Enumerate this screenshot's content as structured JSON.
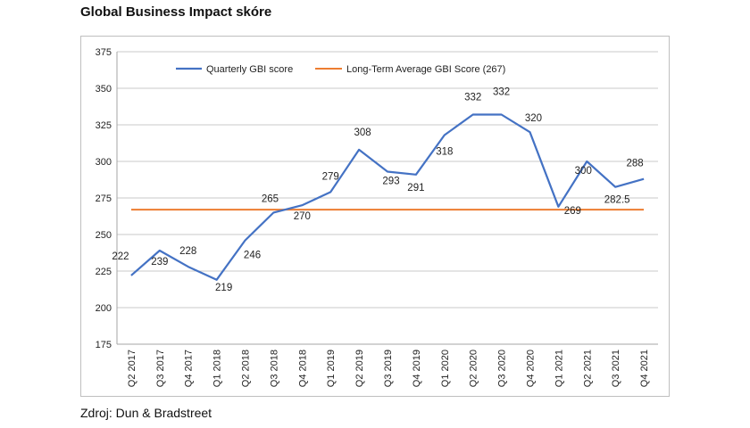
{
  "page": {
    "title": "Global Business Impact skóre",
    "source": "Zdroj: Dun & Bradstreet"
  },
  "chart_data": {
    "type": "line",
    "categories": [
      "Q2 2017",
      "Q3 2017",
      "Q4 2017",
      "Q1 2018",
      "Q2 2018",
      "Q3 2018",
      "Q4 2018",
      "Q1 2019",
      "Q2 2019",
      "Q3 2019",
      "Q4 2019",
      "Q1 2020",
      "Q2 2020",
      "Q3 2020",
      "Q4 2020",
      "Q1 2021",
      "Q2 2021",
      "Q3 2021",
      "Q4 2021"
    ],
    "series": [
      {
        "name": "Quarterly GBI score",
        "color": "#4472c4",
        "values": [
          222,
          239,
          228,
          219,
          246,
          265,
          270,
          279,
          308,
          293,
          291,
          318,
          332,
          332,
          320,
          269,
          300,
          282.5,
          288
        ]
      },
      {
        "name": "Long-Term Average GBI Score (267)",
        "color": "#ed7d31",
        "values": [
          267,
          267,
          267,
          267,
          267,
          267,
          267,
          267,
          267,
          267,
          267,
          267,
          267,
          267,
          267,
          267,
          267,
          267,
          267
        ]
      }
    ],
    "data_labels": [
      "222",
      "239",
      "228",
      "219",
      "246",
      "265",
      "270",
      "279",
      "308",
      "293",
      "291",
      "318",
      "332",
      "332",
      "320",
      "269",
      "300",
      "282.5",
      "288"
    ],
    "ylim": [
      175,
      375
    ],
    "yticks": [
      175,
      200,
      225,
      250,
      275,
      300,
      325,
      350,
      375
    ],
    "grid": true,
    "legend_position": "top"
  }
}
